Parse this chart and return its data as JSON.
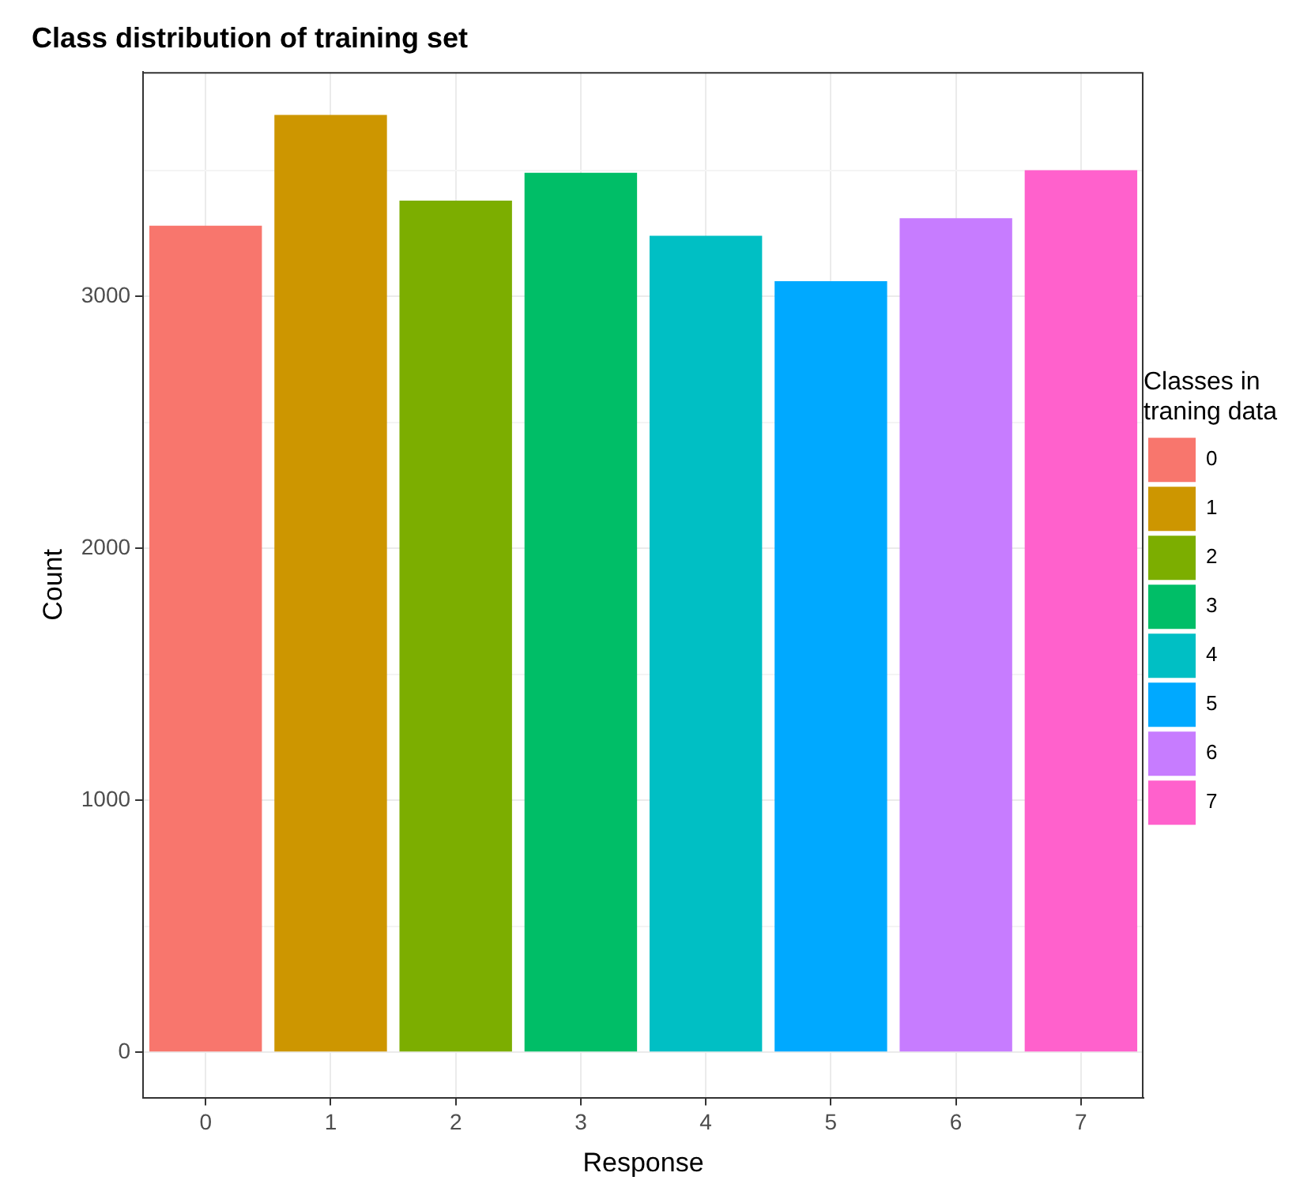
{
  "chart_data": {
    "type": "bar",
    "title": "Class distribution of training set",
    "xlabel": "Response",
    "ylabel": "Count",
    "legend_title": "Classes in traning data",
    "categories": [
      "0",
      "1",
      "2",
      "3",
      "4",
      "5",
      "6",
      "7"
    ],
    "series": [
      {
        "name": "0",
        "color": "#f8766d",
        "values": [
          3280,
          null,
          null,
          null,
          null,
          null,
          null,
          null
        ]
      },
      {
        "name": "1",
        "color": "#cd9600",
        "values": [
          null,
          3720,
          null,
          null,
          null,
          null,
          null,
          null
        ]
      },
      {
        "name": "2",
        "color": "#7cae00",
        "values": [
          null,
          null,
          3380,
          null,
          null,
          null,
          null,
          null
        ]
      },
      {
        "name": "3",
        "color": "#00be67",
        "values": [
          null,
          null,
          null,
          3490,
          null,
          null,
          null,
          null
        ]
      },
      {
        "name": "4",
        "color": "#00bfc4",
        "values": [
          null,
          null,
          null,
          null,
          3240,
          null,
          null,
          null
        ]
      },
      {
        "name": "5",
        "color": "#00a9ff",
        "values": [
          null,
          null,
          null,
          null,
          null,
          3060,
          null,
          null
        ]
      },
      {
        "name": "6",
        "color": "#c77cff",
        "values": [
          null,
          null,
          null,
          null,
          null,
          null,
          3310,
          null
        ]
      },
      {
        "name": "7",
        "color": "#ff61cc",
        "values": [
          null,
          null,
          null,
          null,
          null,
          null,
          null,
          3500
        ]
      }
    ],
    "stacked": true,
    "ylim": [
      -180,
      3890
    ],
    "yticks": [
      0,
      {
        "value": 500,
        "label": null
      },
      1000,
      {
        "value": 1500,
        "label": null
      },
      2000,
      {
        "value": 2500,
        "label": null
      },
      3000,
      {
        "value": 3500,
        "label": null
      }
    ],
    "grid": true,
    "legend": "right"
  }
}
